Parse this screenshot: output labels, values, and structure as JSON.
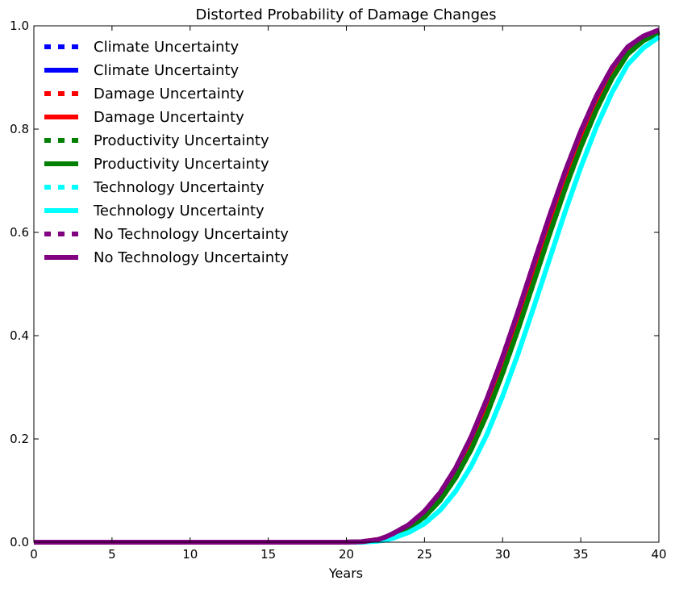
{
  "chart_data": {
    "type": "line",
    "title": "Distorted Probability of Damage Changes",
    "xlabel": "Years",
    "ylabel": "",
    "xlim": [
      0,
      40
    ],
    "ylim": [
      0,
      1.0
    ],
    "x_ticks": [
      0,
      5,
      10,
      15,
      20,
      25,
      30,
      35,
      40
    ],
    "x_tick_labels": [
      "0",
      "5",
      "10",
      "15",
      "20",
      "25",
      "30",
      "35",
      "40"
    ],
    "y_ticks": [
      0,
      0.2,
      0.4,
      0.6,
      0.8,
      1.0
    ],
    "y_tick_labels": [
      "0.0",
      "0.2",
      "0.4",
      "0.6",
      "0.8",
      "1.0"
    ],
    "grid": false,
    "legend_position": "top-left",
    "x": [
      0,
      20,
      21,
      22,
      22.5,
      23,
      24,
      25,
      26,
      27,
      28,
      29,
      30,
      31,
      32,
      33,
      34,
      35,
      36,
      37,
      38,
      39,
      40
    ],
    "series": [
      {
        "name": "Climate Uncertainty",
        "style": "dotted",
        "color": "#0000ff",
        "values": [
          0,
          0,
          0.001,
          0.004,
          0.008,
          0.014,
          0.029,
          0.052,
          0.085,
          0.131,
          0.188,
          0.258,
          0.338,
          0.425,
          0.517,
          0.608,
          0.695,
          0.775,
          0.846,
          0.905,
          0.95,
          0.974,
          0.989
        ]
      },
      {
        "name": "Climate Uncertainty",
        "style": "solid",
        "color": "#0000ff",
        "values": [
          0,
          0,
          0.001,
          0.004,
          0.008,
          0.014,
          0.029,
          0.052,
          0.085,
          0.131,
          0.188,
          0.258,
          0.338,
          0.425,
          0.517,
          0.608,
          0.695,
          0.775,
          0.846,
          0.905,
          0.95,
          0.974,
          0.989
        ]
      },
      {
        "name": "Damage Uncertainty",
        "style": "dotted",
        "color": "#ff0000",
        "values": [
          0,
          0,
          0.001,
          0.005,
          0.009,
          0.016,
          0.032,
          0.057,
          0.092,
          0.139,
          0.198,
          0.27,
          0.351,
          0.44,
          0.533,
          0.624,
          0.71,
          0.789,
          0.858,
          0.914,
          0.956,
          0.978,
          0.991
        ]
      },
      {
        "name": "Damage Uncertainty",
        "style": "solid",
        "color": "#ff0000",
        "values": [
          0,
          0,
          0.001,
          0.005,
          0.009,
          0.016,
          0.032,
          0.057,
          0.092,
          0.139,
          0.198,
          0.27,
          0.351,
          0.44,
          0.533,
          0.624,
          0.71,
          0.789,
          0.858,
          0.914,
          0.956,
          0.978,
          0.991
        ]
      },
      {
        "name": "Productivity Uncertainty",
        "style": "dotted",
        "color": "#008000",
        "values": [
          0,
          0,
          0.001,
          0.004,
          0.007,
          0.013,
          0.027,
          0.049,
          0.081,
          0.125,
          0.18,
          0.248,
          0.327,
          0.413,
          0.504,
          0.596,
          0.684,
          0.765,
          0.837,
          0.898,
          0.945,
          0.971,
          0.987
        ]
      },
      {
        "name": "Productivity Uncertainty",
        "style": "solid",
        "color": "#008000",
        "values": [
          0,
          0,
          0.001,
          0.004,
          0.007,
          0.013,
          0.027,
          0.049,
          0.081,
          0.125,
          0.18,
          0.248,
          0.327,
          0.413,
          0.504,
          0.596,
          0.684,
          0.765,
          0.837,
          0.898,
          0.945,
          0.971,
          0.987
        ]
      },
      {
        "name": "Technology Uncertainty",
        "style": "dotted",
        "color": "#00ffff",
        "values": [
          0,
          0,
          0,
          0.002,
          0.004,
          0.008,
          0.019,
          0.036,
          0.062,
          0.099,
          0.148,
          0.209,
          0.283,
          0.366,
          0.456,
          0.548,
          0.64,
          0.726,
          0.804,
          0.871,
          0.925,
          0.957,
          0.978
        ]
      },
      {
        "name": "Technology Uncertainty",
        "style": "solid",
        "color": "#00ffff",
        "values": [
          0,
          0,
          0,
          0.002,
          0.004,
          0.008,
          0.019,
          0.036,
          0.062,
          0.099,
          0.148,
          0.209,
          0.283,
          0.366,
          0.456,
          0.548,
          0.64,
          0.726,
          0.804,
          0.871,
          0.925,
          0.957,
          0.978
        ]
      },
      {
        "name": "No Technology Uncertainty",
        "style": "dotted",
        "color": "#800080",
        "values": [
          0,
          0,
          0.001,
          0.005,
          0.01,
          0.017,
          0.034,
          0.06,
          0.096,
          0.144,
          0.205,
          0.278,
          0.359,
          0.448,
          0.541,
          0.632,
          0.718,
          0.796,
          0.864,
          0.919,
          0.959,
          0.98,
          0.992
        ]
      },
      {
        "name": "No Technology Uncertainty",
        "style": "solid",
        "color": "#800080",
        "values": [
          0,
          0,
          0.001,
          0.005,
          0.01,
          0.017,
          0.034,
          0.06,
          0.096,
          0.144,
          0.205,
          0.278,
          0.359,
          0.448,
          0.541,
          0.632,
          0.718,
          0.796,
          0.864,
          0.919,
          0.959,
          0.98,
          0.992
        ]
      }
    ]
  }
}
